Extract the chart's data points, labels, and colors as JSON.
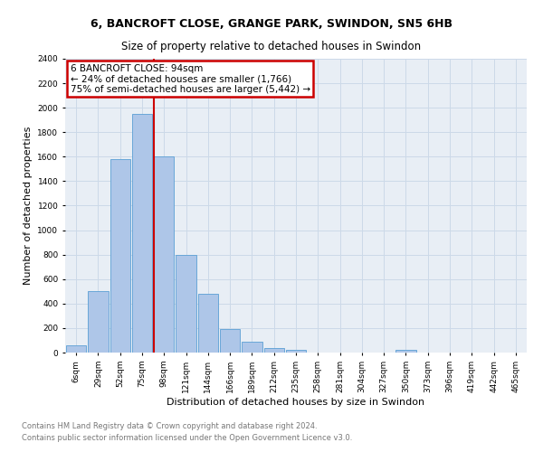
{
  "title1": "6, BANCROFT CLOSE, GRANGE PARK, SWINDON, SN5 6HB",
  "title2": "Size of property relative to detached houses in Swindon",
  "xlabel": "Distribution of detached houses by size in Swindon",
  "ylabel": "Number of detached properties",
  "footnote1": "Contains HM Land Registry data © Crown copyright and database right 2024.",
  "footnote2": "Contains public sector information licensed under the Open Government Licence v3.0.",
  "bar_labels": [
    "6sqm",
    "29sqm",
    "52sqm",
    "75sqm",
    "98sqm",
    "121sqm",
    "144sqm",
    "166sqm",
    "189sqm",
    "212sqm",
    "235sqm",
    "258sqm",
    "281sqm",
    "304sqm",
    "327sqm",
    "350sqm",
    "373sqm",
    "396sqm",
    "419sqm",
    "442sqm",
    "465sqm"
  ],
  "bar_values": [
    60,
    500,
    1580,
    1950,
    1600,
    800,
    480,
    190,
    90,
    35,
    25,
    0,
    0,
    0,
    0,
    20,
    0,
    0,
    0,
    0,
    0
  ],
  "bar_color": "#aec6e8",
  "bar_edge_color": "#5a9fd4",
  "vline_color": "#cc0000",
  "vline_index": 4,
  "annotation_text": "6 BANCROFT CLOSE: 94sqm\n← 24% of detached houses are smaller (1,766)\n75% of semi-detached houses are larger (5,442) →",
  "annotation_box_color": "#cc0000",
  "ylim": [
    0,
    2400
  ],
  "yticks": [
    0,
    200,
    400,
    600,
    800,
    1000,
    1200,
    1400,
    1600,
    1800,
    2000,
    2200,
    2400
  ],
  "grid_color": "#ccd9e8",
  "bg_color": "#e8eef5",
  "title1_fontsize": 9,
  "title2_fontsize": 8.5,
  "label_fontsize": 8,
  "tick_fontsize": 6.5,
  "annot_fontsize": 7.5,
  "footnote_fontsize": 6,
  "footnote_color": "#777777"
}
